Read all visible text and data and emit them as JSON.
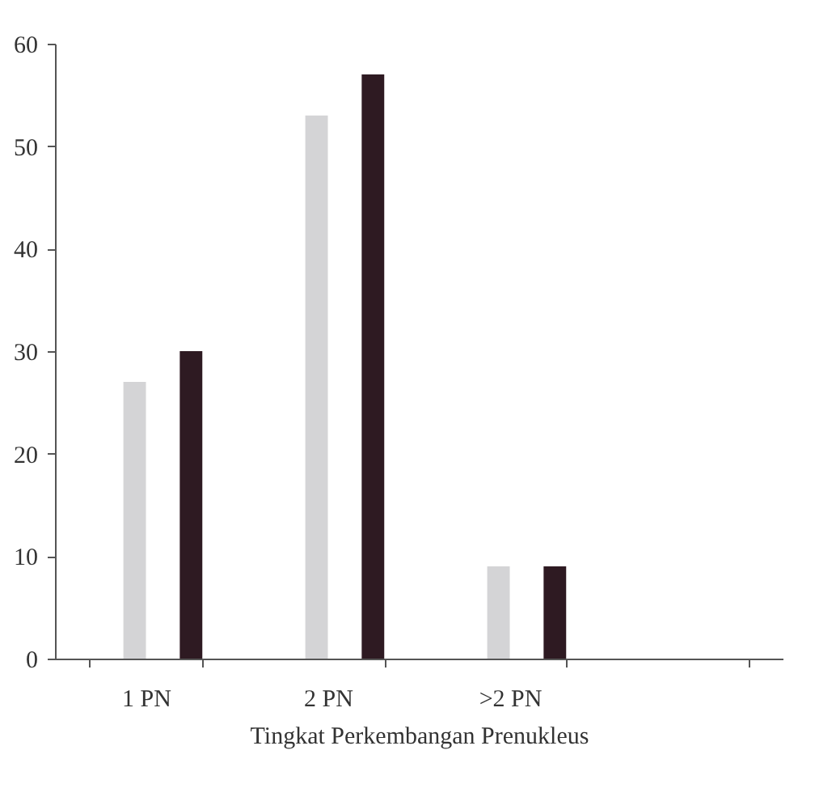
{
  "chart_data": {
    "type": "bar",
    "xlabel": "Tingkat Perkembangan Prenukleus",
    "categories": [
      "1 PN",
      "2 PN",
      ">2 PN",
      null
    ],
    "series": [
      {
        "color": "#d4d4d6",
        "values": [
          27,
          53,
          9,
          null
        ]
      },
      {
        "color": "#2e1a22",
        "values": [
          30,
          57,
          9,
          null
        ]
      }
    ],
    "ylim": [
      0,
      60
    ],
    "yticks": [
      0,
      10,
      20,
      30,
      40,
      50,
      60
    ],
    "grid": false,
    "legend": false
  }
}
